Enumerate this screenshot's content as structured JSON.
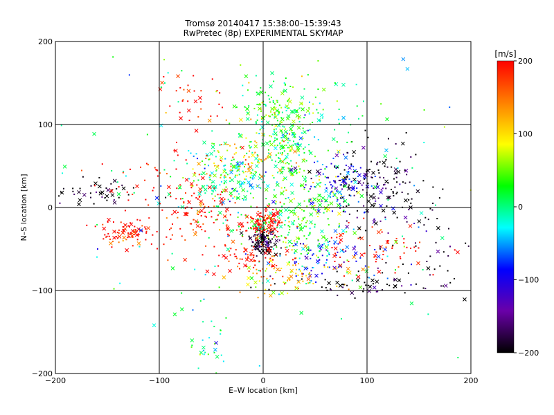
{
  "chart_data": {
    "type": "scatter",
    "title": "Tromsø 20140417 15:38:00–15:39:43",
    "subtitle": "RwPretec (8p) EXPERIMENTAL SKYMAP",
    "xlabel": "E–W location [km]",
    "ylabel": "N–S location [km]",
    "xlim": [
      -200,
      200
    ],
    "ylim": [
      -200,
      200
    ],
    "xticks": [
      -200,
      -100,
      0,
      100,
      200
    ],
    "yticks": [
      -200,
      -100,
      0,
      100,
      200
    ],
    "xtick_labels": [
      "−200",
      "−100",
      "0",
      "100",
      "200"
    ],
    "ytick_labels": [
      "−200",
      "−100",
      "0",
      "100",
      "200"
    ],
    "grid": true,
    "colorbar": {
      "label": "[m/s]",
      "range": [
        -200,
        200
      ],
      "ticks": [
        200,
        100,
        0,
        -100,
        -200
      ],
      "tick_labels": [
        "200",
        "100",
        "0",
        "−100",
        "−200"
      ],
      "colors": [
        "#000000",
        "#6a00a8",
        "#0000ff",
        "#00ffff",
        "#00ff00",
        "#ffff00",
        "#ff8000",
        "#ff0000"
      ]
    },
    "markers": [
      "dot",
      "cross"
    ],
    "clusters": [
      {
        "x": 0,
        "y": -40,
        "spread": [
          6,
          8
        ],
        "count": 140,
        "velocity": -200
      },
      {
        "x": 0,
        "y": -20,
        "spread": [
          10,
          8
        ],
        "count": 130,
        "velocity": 200
      },
      {
        "x": 10,
        "y": 120,
        "spread": [
          20,
          15
        ],
        "count": 110,
        "velocity": 40
      },
      {
        "x": -30,
        "y": 30,
        "spread": [
          25,
          20
        ],
        "count": 160,
        "velocity": 0
      },
      {
        "x": 20,
        "y": 70,
        "spread": [
          15,
          20
        ],
        "count": 130,
        "velocity": 10
      },
      {
        "x": 40,
        "y": 10,
        "spread": [
          20,
          25
        ],
        "count": 120,
        "velocity": 50
      },
      {
        "x": 70,
        "y": 30,
        "spread": [
          20,
          20
        ],
        "count": 110,
        "velocity": -100
      },
      {
        "x": 110,
        "y": 30,
        "spread": [
          25,
          25
        ],
        "count": 140,
        "velocity": -200
      },
      {
        "x": -130,
        "y": -30,
        "spread": [
          15,
          10
        ],
        "count": 90,
        "velocity": 200
      },
      {
        "x": -60,
        "y": -10,
        "spread": [
          20,
          20
        ],
        "count": 110,
        "velocity": 200
      },
      {
        "x": -160,
        "y": 20,
        "spread": [
          20,
          8
        ],
        "count": 45,
        "velocity": -200
      },
      {
        "x": -70,
        "y": 130,
        "spread": [
          15,
          20
        ],
        "count": 35,
        "velocity": 200
      },
      {
        "x": 60,
        "y": -60,
        "spread": [
          25,
          15
        ],
        "count": 90,
        "velocity": -80
      },
      {
        "x": 110,
        "y": -50,
        "spread": [
          30,
          15
        ],
        "count": 70,
        "velocity": 200
      },
      {
        "x": 30,
        "y": -80,
        "spread": [
          30,
          12
        ],
        "count": 80,
        "velocity": 120
      },
      {
        "x": 30,
        "y": -30,
        "spread": [
          25,
          15
        ],
        "count": 100,
        "velocity": 20
      },
      {
        "x": -20,
        "y": 60,
        "spread": [
          20,
          15
        ],
        "count": 90,
        "velocity": 110
      },
      {
        "x": 100,
        "y": -95,
        "spread": [
          40,
          8
        ],
        "count": 60,
        "velocity": -200
      },
      {
        "x": -55,
        "y": -160,
        "spread": [
          12,
          25
        ],
        "count": 25,
        "velocity": 0
      },
      {
        "x": 0,
        "y": 0,
        "spread": [
          120,
          120
        ],
        "count": 200,
        "velocity": 0
      },
      {
        "x": 150,
        "y": -40,
        "spread": [
          25,
          30
        ],
        "count": 55,
        "velocity": -200
      },
      {
        "x": 40,
        "y": 110,
        "spread": [
          30,
          25
        ],
        "count": 70,
        "velocity": 30
      },
      {
        "x": -110,
        "y": 40,
        "spread": [
          30,
          20
        ],
        "count": 45,
        "velocity": 200
      },
      {
        "x": -10,
        "y": -60,
        "spread": [
          20,
          10
        ],
        "count": 80,
        "velocity": 200
      }
    ]
  }
}
